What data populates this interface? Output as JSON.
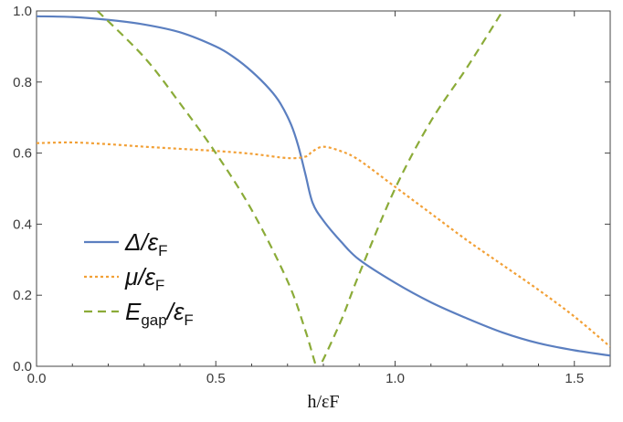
{
  "chart_data": {
    "type": "line",
    "xlabel": "h/εF",
    "ylabel": "",
    "xlim": [
      0,
      1.6
    ],
    "ylim": [
      0,
      1.0
    ],
    "x_ticks": [
      {
        "value": 0.0,
        "label": "0.0"
      },
      {
        "value": 0.5,
        "label": "0.5"
      },
      {
        "value": 1.0,
        "label": "1.0"
      },
      {
        "value": 1.5,
        "label": "1.5"
      }
    ],
    "y_ticks": [
      {
        "value": 0.0,
        "label": "0.0"
      },
      {
        "value": 0.2,
        "label": "0.2"
      },
      {
        "value": 0.4,
        "label": "0.4"
      },
      {
        "value": 0.6,
        "label": "0.6"
      },
      {
        "value": 0.8,
        "label": "0.8"
      },
      {
        "value": 1.0,
        "label": "1.0"
      }
    ],
    "grid": false,
    "legend_position": "left",
    "series": [
      {
        "name": "Δ/εF",
        "legend_main": "Δ/ε",
        "legend_sub": "F",
        "color": "#5b7fc0",
        "dash": "solid",
        "points": [
          [
            0.0,
            0.985
          ],
          [
            0.1,
            0.983
          ],
          [
            0.2,
            0.975
          ],
          [
            0.3,
            0.962
          ],
          [
            0.4,
            0.94
          ],
          [
            0.5,
            0.9
          ],
          [
            0.55,
            0.87
          ],
          [
            0.6,
            0.83
          ],
          [
            0.65,
            0.78
          ],
          [
            0.68,
            0.74
          ],
          [
            0.71,
            0.68
          ],
          [
            0.73,
            0.62
          ],
          [
            0.75,
            0.54
          ],
          [
            0.77,
            0.46
          ],
          [
            0.8,
            0.41
          ],
          [
            0.85,
            0.35
          ],
          [
            0.9,
            0.3
          ],
          [
            1.0,
            0.235
          ],
          [
            1.1,
            0.18
          ],
          [
            1.2,
            0.135
          ],
          [
            1.3,
            0.095
          ],
          [
            1.4,
            0.065
          ],
          [
            1.5,
            0.045
          ],
          [
            1.6,
            0.03
          ]
        ]
      },
      {
        "name": "μ/εF",
        "legend_main": "μ/ε",
        "legend_sub": "F",
        "color": "#f2a036",
        "dash": "dotted",
        "points": [
          [
            0.0,
            0.628
          ],
          [
            0.1,
            0.63
          ],
          [
            0.2,
            0.625
          ],
          [
            0.3,
            0.618
          ],
          [
            0.4,
            0.612
          ],
          [
            0.5,
            0.606
          ],
          [
            0.6,
            0.598
          ],
          [
            0.7,
            0.586
          ],
          [
            0.75,
            0.59
          ],
          [
            0.77,
            0.605
          ],
          [
            0.8,
            0.618
          ],
          [
            0.85,
            0.605
          ],
          [
            0.9,
            0.58
          ],
          [
            1.0,
            0.505
          ],
          [
            1.1,
            0.43
          ],
          [
            1.2,
            0.355
          ],
          [
            1.3,
            0.285
          ],
          [
            1.4,
            0.215
          ],
          [
            1.5,
            0.14
          ],
          [
            1.6,
            0.055
          ]
        ]
      },
      {
        "name": "Egap/εF",
        "legend_main": "E",
        "legend_sub": "gap",
        "legend_tail": "/ε",
        "legend_tail_sub": "F",
        "color": "#8bab38",
        "dash": "dashed",
        "points": [
          [
            0.17,
            1.0
          ],
          [
            0.3,
            0.87
          ],
          [
            0.4,
            0.74
          ],
          [
            0.5,
            0.6
          ],
          [
            0.6,
            0.44
          ],
          [
            0.7,
            0.24
          ],
          [
            0.75,
            0.1
          ],
          [
            0.78,
            0.0
          ],
          [
            0.79,
            0.0
          ],
          [
            0.85,
            0.13
          ],
          [
            0.9,
            0.26
          ],
          [
            1.0,
            0.5
          ],
          [
            1.1,
            0.69
          ],
          [
            1.2,
            0.84
          ],
          [
            1.3,
            1.0
          ]
        ]
      }
    ]
  }
}
